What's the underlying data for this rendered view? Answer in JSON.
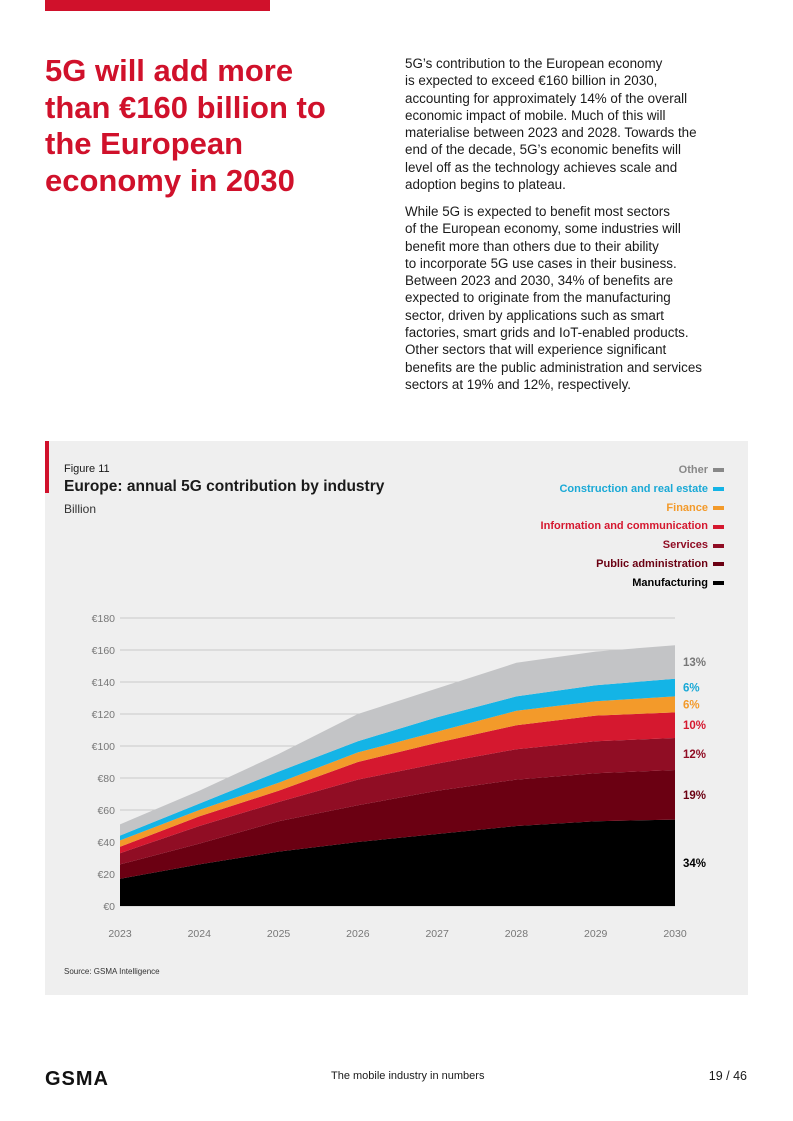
{
  "headline": "5G will add more than €160 billion to the European economy in 2030",
  "paragraphs": [
    [
      "5G’s contribution to the European economy",
      "is expected to exceed €160 billion in 2030,",
      "accounting for approximately 14% of the overall",
      "economic impact of mobile. Much of this will",
      "materialise between 2023 and 2028. Towards the",
      "end of the decade, 5G’s economic benefits will",
      "level off as the technology achieves scale and",
      "adoption begins to plateau."
    ],
    [
      "While 5G is expected to benefit most sectors",
      "of the European economy, some industries will",
      "benefit more than others due to their ability",
      "to incorporate 5G use cases in their business.",
      "Between 2023 and 2030, 34% of benefits are",
      "expected to originate from the manufacturing",
      "sector, driven by applications such as smart",
      "factories, smart grids and IoT-enabled products.",
      "Other sectors that will experience significant",
      "benefits are the public administration and services",
      "sectors at 19% and 12%, respectively."
    ]
  ],
  "figure": {
    "label": "Figure 11",
    "source": "Source: GSMA Intelligence"
  },
  "chart_data": {
    "type": "area",
    "stacked": true,
    "title": "Europe: annual 5G contribution by industry",
    "ylabel": "Billion",
    "xlabel": "",
    "ylim": [
      0,
      180
    ],
    "yticks": [
      "€0",
      "€20",
      "€40",
      "€60",
      "€80",
      "€100",
      "€120",
      "€140",
      "€160",
      "€180"
    ],
    "x": [
      "2023",
      "2024",
      "2025",
      "2026",
      "2027",
      "2028",
      "2029",
      "2030"
    ],
    "legend_position": "top-right",
    "grid": true,
    "series": [
      {
        "name": "Manufacturing",
        "color": "#000000",
        "label_color": "#000000",
        "share_label": "34%",
        "values": [
          17,
          26,
          34,
          40,
          45,
          50,
          53,
          54
        ]
      },
      {
        "name": "Public administration",
        "color": "#6b0012",
        "label_color": "#6b0012",
        "share_label": "19%",
        "values": [
          9,
          13,
          19,
          23,
          27,
          29,
          30,
          31
        ]
      },
      {
        "name": "Services",
        "color": "#900d24",
        "label_color": "#900d24",
        "share_label": "12%",
        "values": [
          7,
          11,
          12,
          16,
          17,
          19,
          20,
          20
        ]
      },
      {
        "name": "Information and communication",
        "color": "#d5182f",
        "label_color": "#d5182f",
        "share_label": "10%",
        "values": [
          4,
          6,
          7,
          11,
          13,
          15,
          16,
          16
        ]
      },
      {
        "name": "Finance",
        "color": "#f39a2a",
        "label_color": "#f39a2a",
        "share_label": "6%",
        "values": [
          4,
          4,
          5,
          6,
          7,
          9,
          9,
          10
        ]
      },
      {
        "name": "Construction and real estate",
        "color": "#14b4e6",
        "label_color": "#1aa9d6",
        "share_label": "6%",
        "values": [
          3,
          4,
          7,
          7,
          9,
          9,
          10,
          11
        ]
      },
      {
        "name": "Other",
        "color": "#c3c4c6",
        "label_color": "#888888",
        "share_label": "13%",
        "values": [
          7,
          8,
          11,
          17,
          18,
          21,
          21,
          21
        ]
      }
    ]
  },
  "footer": {
    "logo": "GSMA",
    "text": "The mobile industry in numbers",
    "page": "19 / 46"
  }
}
